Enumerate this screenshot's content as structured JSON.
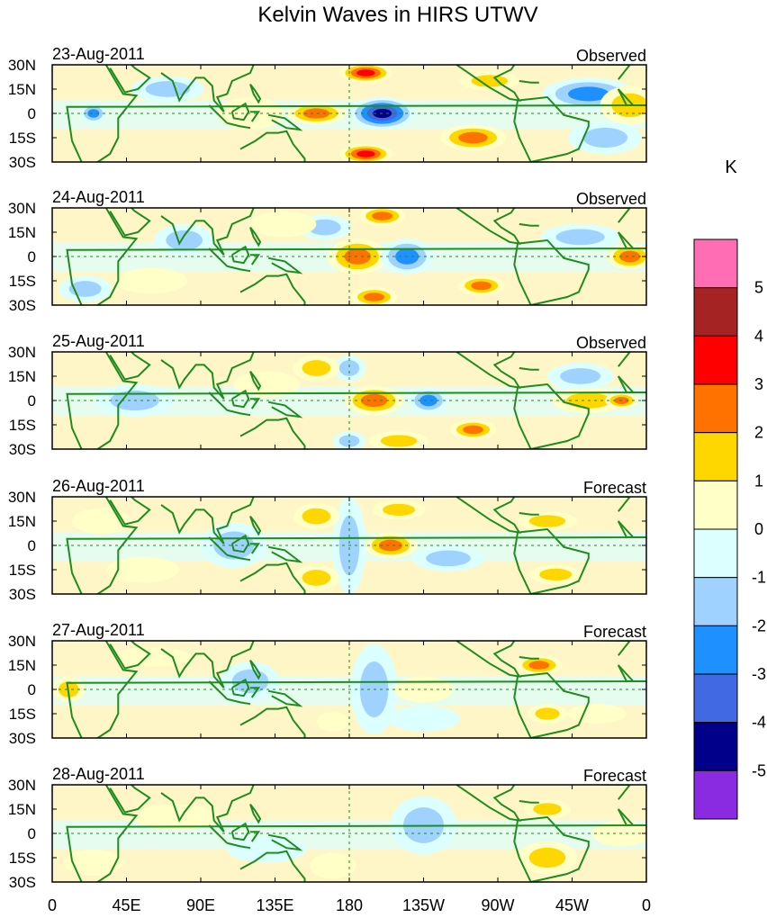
{
  "chart_data": {
    "type": "heatmap",
    "title": "Kelvin Waves in HIRS UTWV",
    "colorbar": {
      "unit": "K",
      "labels": [
        "5",
        "4",
        "3",
        "2",
        "1",
        "0",
        "-1",
        "-2",
        "-3",
        "-4",
        "-5"
      ],
      "colors": [
        "#ff6eb4",
        "#a52323",
        "#ff0000",
        "#ff7200",
        "#ffd700",
        "#ffffc8",
        "#dcffff",
        "#a0d2ff",
        "#1e90ff",
        "#4169e1",
        "#00008b",
        "#8a2be2"
      ]
    },
    "lat_labels": [
      "30N",
      "15N",
      "0",
      "15S",
      "30S"
    ],
    "lon_labels": [
      "0",
      "45E",
      "90E",
      "135E",
      "180",
      "135W",
      "90W",
      "45W",
      "0"
    ],
    "panels": [
      {
        "date": "23-Aug-2011",
        "kind": "Observed",
        "features": [
          {
            "lon": 200,
            "lat": 0,
            "value": -5,
            "rx": 20,
            "ry": 10
          },
          {
            "lon": 160,
            "lat": 0,
            "value": 3,
            "rx": 18,
            "ry": 7
          },
          {
            "lon": 190,
            "lat": 25,
            "value": 4,
            "rx": 16,
            "ry": 6
          },
          {
            "lon": 190,
            "lat": -25,
            "value": 4,
            "rx": 16,
            "ry": 6
          },
          {
            "lon": 325,
            "lat": 12,
            "value": -3,
            "rx": 28,
            "ry": 10
          },
          {
            "lon": 255,
            "lat": -15,
            "value": 3,
            "rx": 20,
            "ry": 8
          },
          {
            "lon": 25,
            "lat": 0,
            "value": -3,
            "rx": 8,
            "ry": 6
          },
          {
            "lon": 70,
            "lat": 15,
            "value": -2,
            "rx": 22,
            "ry": 8
          },
          {
            "lon": 265,
            "lat": 20,
            "value": 2,
            "rx": 18,
            "ry": 6
          },
          {
            "lon": 350,
            "lat": 5,
            "value": 2,
            "rx": 18,
            "ry": 12
          },
          {
            "lon": 120,
            "lat": 0,
            "value": 1,
            "rx": 20,
            "ry": 10
          },
          {
            "lon": 335,
            "lat": -15,
            "value": -2,
            "rx": 22,
            "ry": 10
          }
        ]
      },
      {
        "date": "24-Aug-2011",
        "kind": "Observed",
        "features": [
          {
            "lon": 185,
            "lat": 0,
            "value": 3,
            "rx": 18,
            "ry": 11
          },
          {
            "lon": 215,
            "lat": 0,
            "value": -3,
            "rx": 16,
            "ry": 11
          },
          {
            "lon": 165,
            "lat": 18,
            "value": -2,
            "rx": 16,
            "ry": 8
          },
          {
            "lon": 200,
            "lat": 25,
            "value": 3,
            "rx": 14,
            "ry": 6
          },
          {
            "lon": 195,
            "lat": -25,
            "value": 3,
            "rx": 14,
            "ry": 6
          },
          {
            "lon": 260,
            "lat": -18,
            "value": 3,
            "rx": 14,
            "ry": 6
          },
          {
            "lon": 350,
            "lat": 0,
            "value": 3,
            "rx": 14,
            "ry": 8
          },
          {
            "lon": 320,
            "lat": 12,
            "value": -2,
            "rx": 24,
            "ry": 8
          },
          {
            "lon": 80,
            "lat": 10,
            "value": -2,
            "rx": 18,
            "ry": 10
          },
          {
            "lon": 20,
            "lat": -20,
            "value": -2,
            "rx": 16,
            "ry": 8
          },
          {
            "lon": 140,
            "lat": 20,
            "value": 1,
            "rx": 20,
            "ry": 8
          },
          {
            "lon": 60,
            "lat": -15,
            "value": 1,
            "rx": 22,
            "ry": 8
          }
        ]
      },
      {
        "date": "25-Aug-2011",
        "kind": "Observed",
        "features": [
          {
            "lon": 195,
            "lat": 0,
            "value": 3,
            "rx": 18,
            "ry": 9
          },
          {
            "lon": 228,
            "lat": 0,
            "value": -3,
            "rx": 12,
            "ry": 8
          },
          {
            "lon": 180,
            "lat": 20,
            "value": -2,
            "rx": 10,
            "ry": 8
          },
          {
            "lon": 180,
            "lat": -25,
            "value": -2,
            "rx": 10,
            "ry": 6
          },
          {
            "lon": 160,
            "lat": 20,
            "value": 2,
            "rx": 14,
            "ry": 8
          },
          {
            "lon": 210,
            "lat": -25,
            "value": 2,
            "rx": 18,
            "ry": 6
          },
          {
            "lon": 255,
            "lat": -18,
            "value": 3,
            "rx": 14,
            "ry": 6
          },
          {
            "lon": 325,
            "lat": 0,
            "value": 2,
            "rx": 22,
            "ry": 8
          },
          {
            "lon": 345,
            "lat": 0,
            "value": 3,
            "rx": 10,
            "ry": 5
          },
          {
            "lon": 320,
            "lat": 15,
            "value": -2,
            "rx": 20,
            "ry": 8
          },
          {
            "lon": 50,
            "lat": 0,
            "value": -2,
            "rx": 24,
            "ry": 10
          },
          {
            "lon": 130,
            "lat": 10,
            "value": 1,
            "rx": 20,
            "ry": 8
          }
        ]
      },
      {
        "date": "26-Aug-2011",
        "kind": "Forecast",
        "features": [
          {
            "lon": 205,
            "lat": 0,
            "value": 3,
            "rx": 16,
            "ry": 8
          },
          {
            "lon": 180,
            "lat": 0,
            "value": -2,
            "rx": 10,
            "ry": 30
          },
          {
            "lon": 160,
            "lat": 18,
            "value": 2,
            "rx": 14,
            "ry": 8
          },
          {
            "lon": 160,
            "lat": -20,
            "value": 2,
            "rx": 14,
            "ry": 8
          },
          {
            "lon": 210,
            "lat": 22,
            "value": 2,
            "rx": 16,
            "ry": 6
          },
          {
            "lon": 110,
            "lat": 0,
            "value": -2,
            "rx": 20,
            "ry": 14
          },
          {
            "lon": 300,
            "lat": 15,
            "value": 2,
            "rx": 18,
            "ry": 6
          },
          {
            "lon": 305,
            "lat": -18,
            "value": 2,
            "rx": 16,
            "ry": 6
          },
          {
            "lon": 240,
            "lat": -8,
            "value": -2,
            "rx": 22,
            "ry": 8
          },
          {
            "lon": 55,
            "lat": -15,
            "value": 1,
            "rx": 22,
            "ry": 8
          },
          {
            "lon": 30,
            "lat": 15,
            "value": 1,
            "rx": 18,
            "ry": 8
          }
        ]
      },
      {
        "date": "27-Aug-2011",
        "kind": "Forecast",
        "features": [
          {
            "lon": 195,
            "lat": 0,
            "value": -2,
            "rx": 14,
            "ry": 28
          },
          {
            "lon": 225,
            "lat": 0,
            "value": 1,
            "rx": 18,
            "ry": 8
          },
          {
            "lon": 225,
            "lat": -18,
            "value": -1,
            "rx": 22,
            "ry": 8
          },
          {
            "lon": 295,
            "lat": 15,
            "value": 3,
            "rx": 14,
            "ry": 6
          },
          {
            "lon": 300,
            "lat": -15,
            "value": 2,
            "rx": 12,
            "ry": 6
          },
          {
            "lon": 120,
            "lat": 5,
            "value": -2,
            "rx": 18,
            "ry": 12
          },
          {
            "lon": 10,
            "lat": 0,
            "value": 2,
            "rx": 10,
            "ry": 8
          },
          {
            "lon": 170,
            "lat": -20,
            "value": 1,
            "rx": 10,
            "ry": 6
          },
          {
            "lon": 330,
            "lat": -15,
            "value": 1,
            "rx": 18,
            "ry": 6
          },
          {
            "lon": 60,
            "lat": 20,
            "value": 1,
            "rx": 24,
            "ry": 6
          }
        ]
      },
      {
        "date": "28-Aug-2011",
        "kind": "Forecast",
        "features": [
          {
            "lon": 225,
            "lat": 5,
            "value": -2,
            "rx": 20,
            "ry": 18
          },
          {
            "lon": 300,
            "lat": -15,
            "value": 2,
            "rx": 18,
            "ry": 10
          },
          {
            "lon": 300,
            "lat": 15,
            "value": 2,
            "rx": 14,
            "ry": 6
          },
          {
            "lon": 170,
            "lat": -20,
            "value": 1,
            "rx": 14,
            "ry": 8
          },
          {
            "lon": 75,
            "lat": 10,
            "value": 1,
            "rx": 26,
            "ry": 8
          },
          {
            "lon": 130,
            "lat": -10,
            "value": -1,
            "rx": 24,
            "ry": 8
          },
          {
            "lon": 345,
            "lat": 0,
            "value": 1,
            "rx": 18,
            "ry": 8
          },
          {
            "lon": 25,
            "lat": -18,
            "value": 1,
            "rx": 18,
            "ry": 8
          }
        ]
      }
    ]
  }
}
